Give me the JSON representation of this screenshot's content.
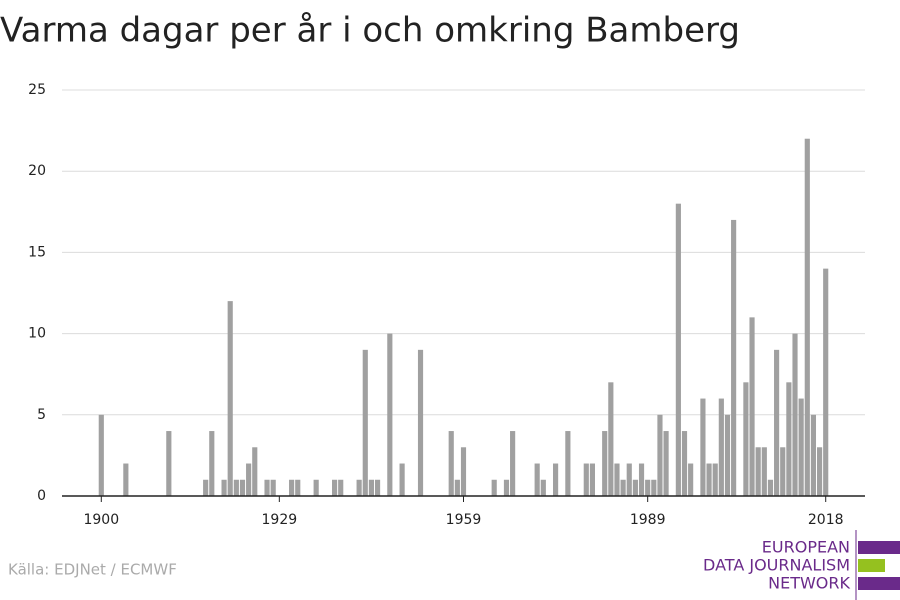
{
  "chart_data": {
    "type": "bar",
    "title": "Varma dagar per år i och omkring Bamberg",
    "source": "Källa: EDJNet / ECMWF",
    "logo": [
      "EUROPEAN",
      "DATA JOURNALISM",
      "NETWORK"
    ],
    "color": "#a0a0a0",
    "x": [
      1900,
      1901,
      1902,
      1903,
      1904,
      1905,
      1906,
      1907,
      1908,
      1909,
      1910,
      1911,
      1912,
      1913,
      1914,
      1915,
      1916,
      1917,
      1918,
      1919,
      1920,
      1921,
      1922,
      1923,
      1924,
      1925,
      1926,
      1927,
      1928,
      1929,
      1930,
      1931,
      1932,
      1933,
      1934,
      1935,
      1936,
      1937,
      1938,
      1939,
      1940,
      1941,
      1942,
      1943,
      1944,
      1945,
      1946,
      1947,
      1948,
      1949,
      1950,
      1951,
      1952,
      1953,
      1954,
      1955,
      1956,
      1957,
      1958,
      1959,
      1960,
      1961,
      1962,
      1963,
      1964,
      1965,
      1966,
      1967,
      1968,
      1969,
      1970,
      1971,
      1972,
      1973,
      1974,
      1975,
      1976,
      1977,
      1978,
      1979,
      1980,
      1981,
      1982,
      1983,
      1984,
      1985,
      1986,
      1987,
      1988,
      1989,
      1990,
      1991,
      1992,
      1993,
      1994,
      1995,
      1996,
      1997,
      1998,
      1999,
      2000,
      2001,
      2002,
      2003,
      2004,
      2005,
      2006,
      2007,
      2008,
      2009,
      2010,
      2011,
      2012,
      2013,
      2014,
      2015,
      2016,
      2017,
      2018
    ],
    "values": [
      5,
      0,
      0,
      0,
      2,
      0,
      0,
      0,
      0,
      0,
      0,
      4,
      0,
      0,
      0,
      0,
      0,
      1,
      4,
      0,
      1,
      12,
      1,
      1,
      2,
      3,
      0,
      1,
      1,
      0,
      0,
      1,
      1,
      0,
      0,
      1,
      0,
      0,
      1,
      1,
      0,
      0,
      1,
      9,
      1,
      1,
      0,
      10,
      0,
      2,
      0,
      0,
      9,
      0,
      0,
      0,
      0,
      4,
      1,
      3,
      0,
      0,
      0,
      0,
      1,
      0,
      1,
      4,
      0,
      0,
      0,
      2,
      1,
      0,
      2,
      0,
      4,
      0,
      0,
      2,
      2,
      0,
      4,
      7,
      2,
      1,
      2,
      1,
      2,
      1,
      1,
      5,
      4,
      0,
      18,
      4,
      2,
      0,
      6,
      2,
      2,
      6,
      5,
      17,
      0,
      7,
      11,
      3,
      3,
      1,
      9,
      3,
      7,
      10,
      6,
      22,
      5,
      3,
      14
    ],
    "xlim": [
      1893.6,
      2024.4
    ],
    "xticks": [
      1900,
      1929,
      1959,
      1989,
      2018
    ],
    "ylim": [
      0,
      25
    ],
    "yticks": [
      0,
      5,
      10,
      15,
      20,
      25
    ],
    "grid": true
  }
}
